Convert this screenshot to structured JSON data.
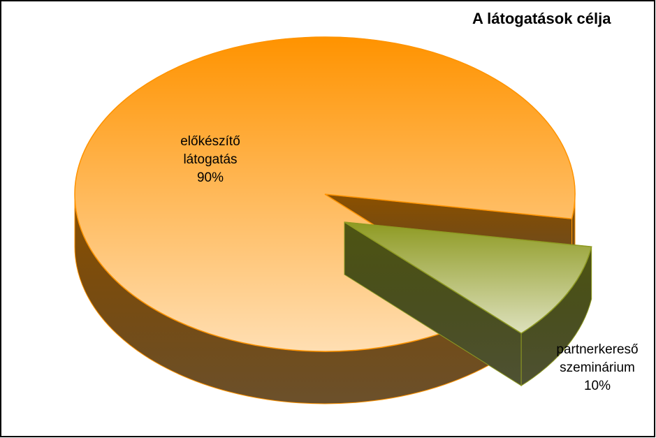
{
  "chart_data": {
    "type": "pie",
    "title": "A látogatások célja",
    "categories": [
      "előkészítő látogatás",
      "partnerkereső szeminárium"
    ],
    "values": [
      90,
      10
    ],
    "value_labels": [
      "90%",
      "10%"
    ],
    "colors": [
      "#ff9300",
      "#8e9a22"
    ]
  }
}
